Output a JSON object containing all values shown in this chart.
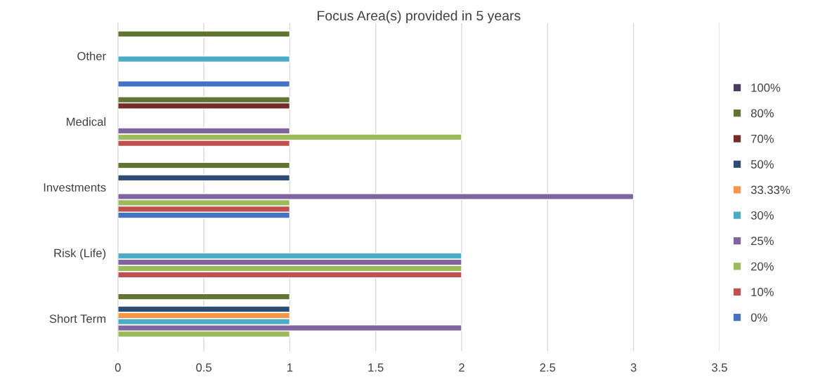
{
  "chart_data": {
    "type": "bar",
    "orientation": "horizontal",
    "title": "Focus Area(s) provided in 5 years",
    "categories": [
      "Other",
      "Medical",
      "Investments",
      "Risk (Life)",
      "Short Term"
    ],
    "series": [
      {
        "name": "0%",
        "color": "#4472c4",
        "values": [
          1,
          null,
          1,
          null,
          null
        ]
      },
      {
        "name": "10%",
        "color": "#c0504d",
        "values": [
          null,
          1,
          1,
          2,
          null
        ]
      },
      {
        "name": "20%",
        "color": "#9bbb59",
        "values": [
          null,
          2,
          1,
          2,
          1
        ]
      },
      {
        "name": "25%",
        "color": "#8064a2",
        "values": [
          null,
          1,
          3,
          2,
          2
        ]
      },
      {
        "name": "30%",
        "color": "#4bacc6",
        "values": [
          1,
          null,
          null,
          2,
          1
        ]
      },
      {
        "name": "33.33%",
        "color": "#f79646",
        "values": [
          null,
          null,
          null,
          null,
          1
        ]
      },
      {
        "name": "50%",
        "color": "#2c4d75",
        "values": [
          null,
          null,
          1,
          null,
          1
        ]
      },
      {
        "name": "70%",
        "color": "#772c2a",
        "values": [
          null,
          1,
          null,
          null,
          null
        ]
      },
      {
        "name": "80%",
        "color": "#5f7530",
        "values": [
          1,
          1,
          1,
          null,
          1
        ]
      },
      {
        "name": "100%",
        "color": "#4d3b62",
        "values": [
          null,
          null,
          null,
          null,
          null
        ]
      }
    ],
    "xlim": [
      0,
      3.5
    ],
    "xticks": [
      0,
      0.5,
      1,
      1.5,
      2,
      2.5,
      3,
      3.5
    ],
    "grid": "x",
    "legend": "right"
  }
}
